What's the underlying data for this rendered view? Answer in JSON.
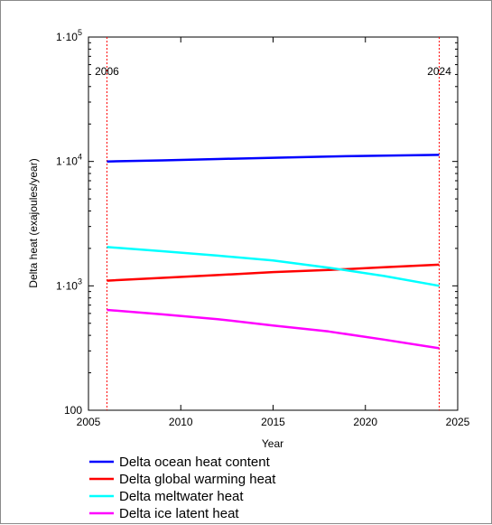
{
  "chart_data": {
    "type": "line",
    "title": "",
    "xlabel": "Year",
    "ylabel": "Delta heat (exajoules/year)",
    "xlim": [
      2005,
      2025
    ],
    "ylim": [
      100,
      100000
    ],
    "y_scale": "log",
    "x_ticks": [
      2005,
      2010,
      2015,
      2020,
      2025
    ],
    "x_tick_labels": [
      "2005",
      "2010",
      "2015",
      "2020",
      "2025"
    ],
    "y_ticks": [
      100,
      1000,
      10000,
      100000
    ],
    "y_tick_labels": [
      {
        "mantissa": "100",
        "exp": ""
      },
      {
        "mantissa": "1·10",
        "exp": "3"
      },
      {
        "mantissa": "1·10",
        "exp": "4"
      },
      {
        "mantissa": "1·10",
        "exp": "5"
      }
    ],
    "reference_lines": [
      {
        "x": 2006,
        "label": "2006",
        "color": "#ff0000"
      },
      {
        "x": 2024,
        "label": "2024",
        "color": "#ff0000"
      }
    ],
    "legend_position": "bottom",
    "series": [
      {
        "name": "Delta ocean heat content",
        "color": "#0000ff",
        "x": [
          2006,
          2009,
          2012,
          2015,
          2018,
          2021,
          2024
        ],
        "y": [
          10000,
          10200,
          10450,
          10700,
          10950,
          11150,
          11300
        ]
      },
      {
        "name": "Delta global warming heat",
        "color": "#ff0000",
        "x": [
          2006,
          2009,
          2012,
          2015,
          2018,
          2021,
          2024
        ],
        "y": [
          1100,
          1160,
          1220,
          1290,
          1340,
          1410,
          1480
        ]
      },
      {
        "name": "Delta meltwater heat",
        "color": "#00ffff",
        "x": [
          2006,
          2009,
          2012,
          2015,
          2018,
          2021,
          2024
        ],
        "y": [
          2050,
          1900,
          1750,
          1600,
          1400,
          1200,
          1000
        ]
      },
      {
        "name": "Delta ice latent heat",
        "color": "#ff00ff",
        "x": [
          2006,
          2009,
          2012,
          2015,
          2018,
          2021,
          2024
        ],
        "y": [
          640,
          590,
          540,
          480,
          430,
          370,
          315
        ]
      }
    ]
  }
}
